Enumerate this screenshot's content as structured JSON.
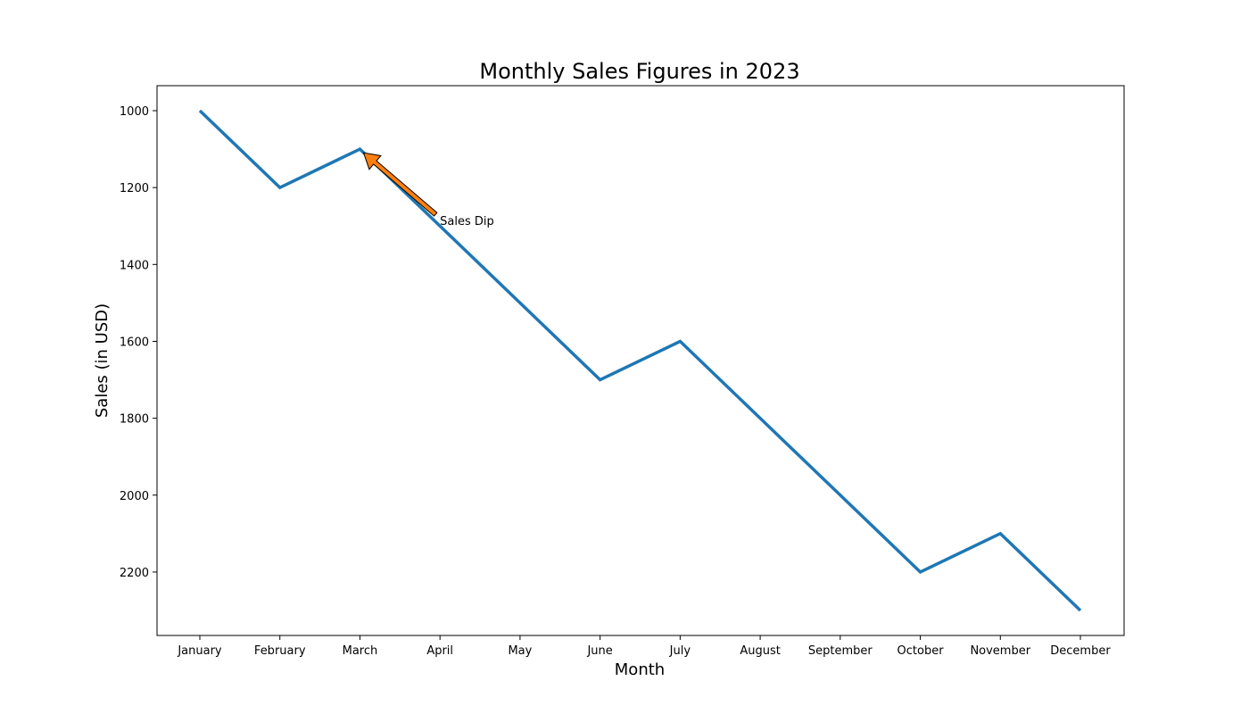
{
  "chart_data": {
    "type": "line",
    "title": "Monthly Sales Figures in 2023",
    "xlabel": "Month",
    "ylabel": "Sales (in USD)",
    "categories": [
      "January",
      "February",
      "March",
      "April",
      "May",
      "June",
      "July",
      "August",
      "September",
      "October",
      "November",
      "December"
    ],
    "series": [
      {
        "values": [
          1000,
          1200,
          1100,
          1300,
          1500,
          1700,
          1600,
          1800,
          2000,
          2200,
          2100,
          2300
        ],
        "color": "#1f77b4"
      }
    ],
    "yticks": [
      1000,
      1200,
      1400,
      1600,
      1800,
      2000,
      2200
    ],
    "ylim": [
      935,
      2365
    ],
    "y_inverted": true,
    "grid": false,
    "annotation": {
      "text": "Sales Dip",
      "point": {
        "x": "March",
        "y": 1100
      },
      "text_position": {
        "x": "April",
        "y": 1300
      },
      "arrow_color": "#ff7f0e"
    }
  }
}
